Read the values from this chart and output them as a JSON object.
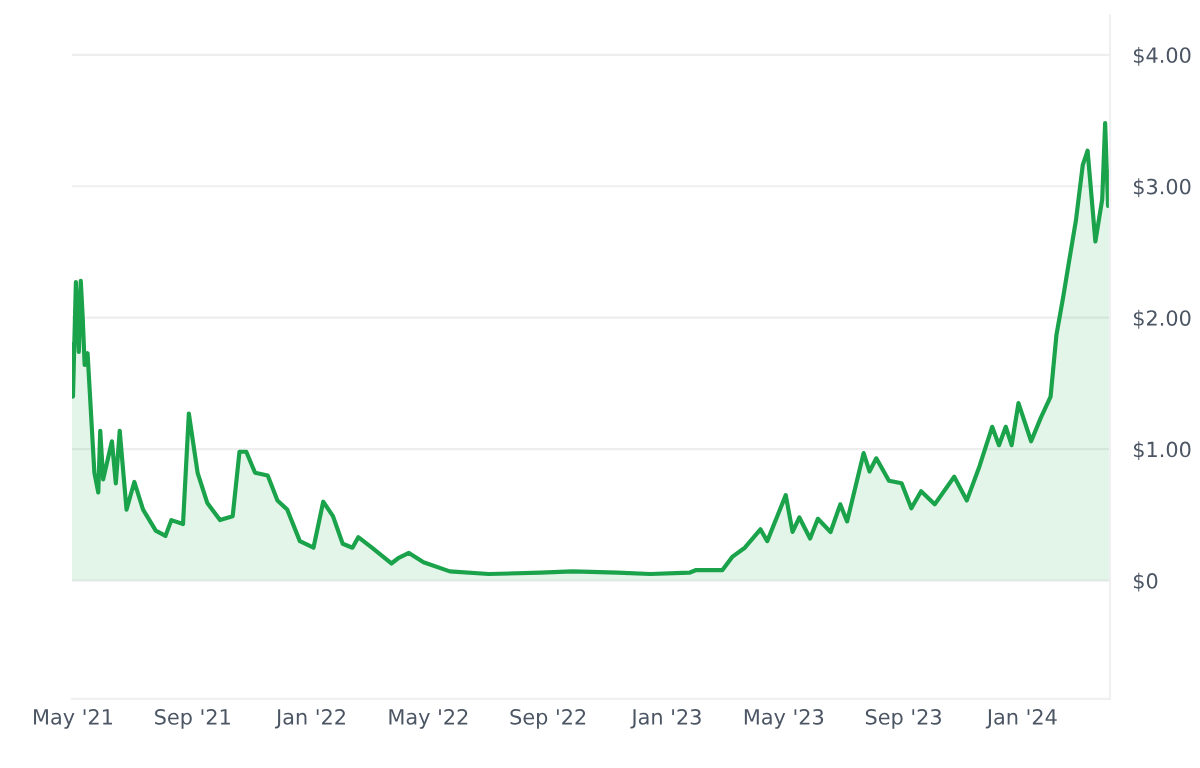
{
  "chart_data": {
    "type": "area",
    "color": "#1aa34a",
    "grid": "y",
    "legend": false,
    "x": [
      "2021-04-30",
      "2021-05-01",
      "2021-05-04",
      "2021-05-07",
      "2021-05-09",
      "2021-05-11",
      "2021-05-13",
      "2021-05-16",
      "2021-05-23",
      "2021-05-27",
      "2021-05-29",
      "2021-06-01",
      "2021-06-10",
      "2021-06-14",
      "2021-06-18",
      "2021-06-25",
      "2021-07-03",
      "2021-07-12",
      "2021-07-25",
      "2021-08-04",
      "2021-08-10",
      "2021-08-22",
      "2021-08-28",
      "2021-09-06",
      "2021-09-16",
      "2021-09-29",
      "2021-10-12",
      "2021-10-19",
      "2021-10-26",
      "2021-11-04",
      "2021-11-17",
      "2021-11-27",
      "2021-12-07",
      "2021-12-20",
      "2022-01-03",
      "2022-01-13",
      "2022-01-23",
      "2022-02-02",
      "2022-02-12",
      "2022-02-18",
      "2022-03-04",
      "2022-03-24",
      "2022-03-31",
      "2022-04-11",
      "2022-04-26",
      "2022-05-23",
      "2022-07-02",
      "2022-08-24",
      "2022-09-26",
      "2022-11-11",
      "2022-12-15",
      "2023-01-24",
      "2023-01-31",
      "2023-02-27",
      "2023-03-09",
      "2023-03-22",
      "2023-04-07",
      "2023-04-14",
      "2023-05-03",
      "2023-05-10",
      "2023-05-17",
      "2023-05-28",
      "2023-06-05",
      "2023-06-18",
      "2023-06-28",
      "2023-07-05",
      "2023-07-22",
      "2023-07-28",
      "2023-08-04",
      "2023-08-17",
      "2023-08-30",
      "2023-09-09",
      "2023-09-19",
      "2023-10-03",
      "2023-10-23",
      "2023-11-05",
      "2023-11-18",
      "2023-12-01",
      "2023-12-08",
      "2023-12-15",
      "2023-12-21",
      "2023-12-28",
      "2024-01-10",
      "2024-01-20",
      "2024-01-30",
      "2024-02-05",
      "2024-02-12",
      "2024-02-18",
      "2024-02-25",
      "2024-03-03",
      "2024-03-08",
      "2024-03-16",
      "2024-03-23",
      "2024-03-26",
      "2024-03-29",
      "2024-03-31"
    ],
    "values": [
      1.8,
      1.4,
      2.27,
      1.74,
      2.28,
      2.0,
      1.64,
      1.73,
      0.82,
      0.67,
      1.14,
      0.77,
      1.06,
      0.74,
      1.14,
      0.54,
      0.75,
      0.54,
      0.38,
      0.34,
      0.46,
      0.43,
      1.27,
      0.82,
      0.59,
      0.46,
      0.49,
      0.98,
      0.98,
      0.82,
      0.8,
      0.61,
      0.54,
      0.3,
      0.25,
      0.6,
      0.49,
      0.28,
      0.25,
      0.33,
      0.25,
      0.13,
      0.17,
      0.21,
      0.14,
      0.07,
      0.05,
      0.06,
      0.07,
      0.06,
      0.05,
      0.06,
      0.08,
      0.08,
      0.18,
      0.25,
      0.39,
      0.3,
      0.65,
      0.37,
      0.48,
      0.32,
      0.47,
      0.37,
      0.58,
      0.45,
      0.97,
      0.83,
      0.93,
      0.76,
      0.74,
      0.55,
      0.68,
      0.58,
      0.79,
      0.61,
      0.87,
      1.17,
      1.03,
      1.17,
      1.03,
      1.35,
      1.06,
      1.24,
      1.4,
      1.87,
      2.16,
      2.43,
      2.74,
      3.16,
      3.27,
      2.58,
      2.9,
      3.48,
      2.85,
      3.11
    ],
    "xlim": [
      "2021-04-30",
      "2024-03-31"
    ],
    "xticks": [
      {
        "value": "2021-05-01",
        "label": "May '21"
      },
      {
        "value": "2021-09-01",
        "label": "Sep '21"
      },
      {
        "value": "2022-01-01",
        "label": "Jan '22"
      },
      {
        "value": "2022-05-01",
        "label": "May '22"
      },
      {
        "value": "2022-09-01",
        "label": "Sep '22"
      },
      {
        "value": "2023-01-01",
        "label": "Jan '23"
      },
      {
        "value": "2023-05-01",
        "label": "May '23"
      },
      {
        "value": "2023-09-01",
        "label": "Sep '23"
      },
      {
        "value": "2024-01-01",
        "label": "Jan '24"
      }
    ],
    "ylim": [
      -0.9,
      4.3
    ],
    "yticks": [
      {
        "value": 0,
        "label": "$0"
      },
      {
        "value": 1,
        "label": "$1.00"
      },
      {
        "value": 2,
        "label": "$2.00"
      },
      {
        "value": 3,
        "label": "$3.00"
      },
      {
        "value": 4,
        "label": "$4.00"
      }
    ]
  }
}
